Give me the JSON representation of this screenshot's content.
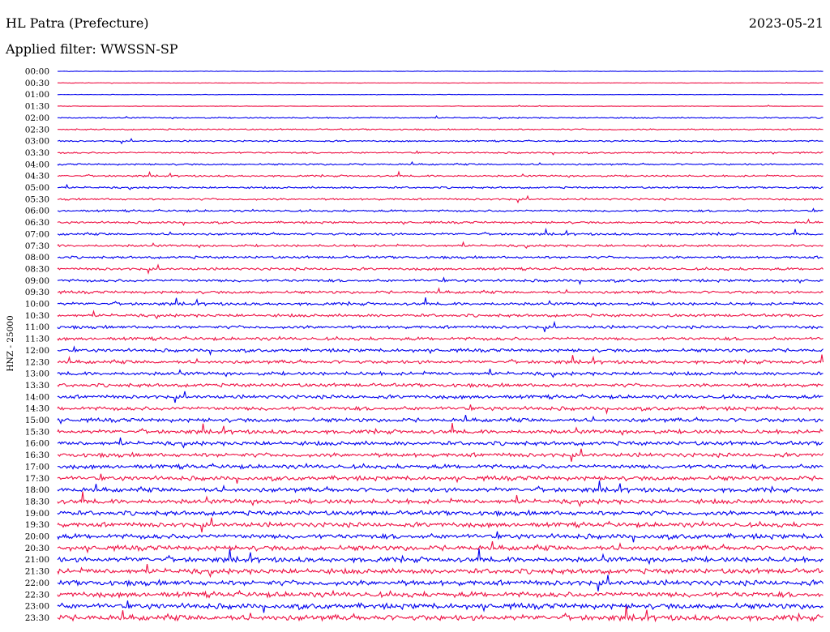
{
  "header": {
    "station": "HL Patra (Prefecture)",
    "date": "2023-05-21",
    "filter_label": "Applied filter: WWSSN-SP"
  },
  "chart_data": {
    "type": "line",
    "title": "HL Patra (Prefecture)",
    "ylabel": "HNZ - 25000",
    "row_times": [
      "00:00",
      "00:30",
      "01:00",
      "01:30",
      "02:00",
      "02:30",
      "03:00",
      "03:30",
      "04:00",
      "04:30",
      "05:00",
      "05:30",
      "06:00",
      "06:30",
      "07:00",
      "07:30",
      "08:00",
      "08:30",
      "09:00",
      "09:30",
      "10:00",
      "10:30",
      "11:00",
      "11:30",
      "12:00",
      "12:30",
      "13:00",
      "13:30",
      "14:00",
      "14:30",
      "15:00",
      "15:30",
      "16:00",
      "16:30",
      "17:00",
      "17:30",
      "18:00",
      "18:30",
      "19:00",
      "19:30",
      "20:00",
      "20:30",
      "21:00",
      "21:30",
      "22:00",
      "22:30",
      "23:00",
      "23:30"
    ],
    "series_colors": [
      "#0000ee",
      "#ee1144"
    ],
    "grid": false
  }
}
